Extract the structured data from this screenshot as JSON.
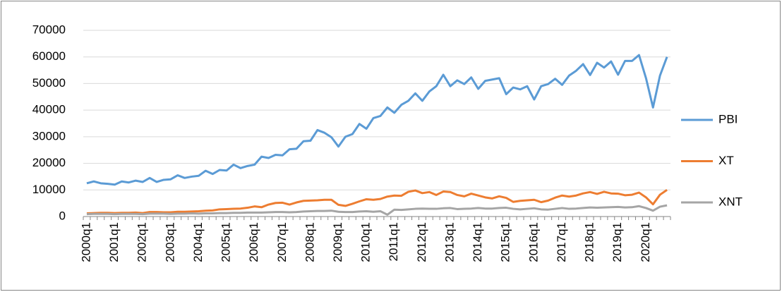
{
  "chart_data": {
    "type": "line",
    "categories": [
      "2000q1",
      null,
      null,
      null,
      "2001q1",
      null,
      null,
      null,
      "2002q1",
      null,
      null,
      null,
      "2003q1",
      null,
      null,
      null,
      "2004q1",
      null,
      null,
      null,
      "2005q1",
      null,
      null,
      null,
      "2006q1",
      null,
      null,
      null,
      "2007q1",
      null,
      null,
      null,
      "2008q1",
      null,
      null,
      null,
      "2009q1",
      null,
      null,
      null,
      "2010q1",
      null,
      null,
      null,
      "2011q1",
      null,
      null,
      null,
      "2012q1",
      null,
      null,
      null,
      "2013q1",
      null,
      null,
      null,
      "2014q1",
      null,
      null,
      null,
      "2015q1",
      null,
      null,
      null,
      "2016q1",
      null,
      null,
      null,
      "2017q1",
      null,
      null,
      null,
      "2018q1",
      null,
      null,
      null,
      "2019q1",
      null,
      null,
      null,
      "2020q1",
      null,
      null,
      null
    ],
    "series": [
      {
        "name": "PBI",
        "color": "#5b9bd5",
        "values": [
          12500,
          13200,
          12500,
          12300,
          12000,
          13200,
          12800,
          13500,
          13000,
          14500,
          13000,
          13800,
          14000,
          15500,
          14500,
          15000,
          15300,
          17200,
          16000,
          17500,
          17300,
          19500,
          18200,
          19000,
          19500,
          22500,
          22000,
          23200,
          23000,
          25300,
          25500,
          28300,
          28500,
          32500,
          31500,
          29800,
          26300,
          30000,
          31000,
          34800,
          33000,
          37000,
          37800,
          41000,
          39000,
          42000,
          43500,
          46300,
          43500,
          47000,
          49000,
          53300,
          49000,
          51200,
          49800,
          52300,
          48000,
          51000,
          51500,
          52000,
          46000,
          48500,
          47800,
          49000,
          44000,
          49000,
          49800,
          51800,
          49500,
          53000,
          54800,
          57300,
          53200,
          57800,
          56000,
          58300,
          53300,
          58500,
          58500,
          60700,
          52000,
          41000,
          53000,
          60000
        ]
      },
      {
        "name": "XT",
        "color": "#ed7d31",
        "values": [
          1200,
          1300,
          1400,
          1400,
          1300,
          1400,
          1400,
          1500,
          1300,
          1700,
          1700,
          1600,
          1600,
          1800,
          1800,
          1900,
          2000,
          2200,
          2300,
          2700,
          2800,
          2900,
          3000,
          3300,
          3800,
          3500,
          4500,
          5100,
          5200,
          4500,
          5300,
          5900,
          6000,
          6100,
          6300,
          6300,
          4400,
          4000,
          4800,
          5700,
          6500,
          6300,
          6600,
          7500,
          7900,
          7800,
          9300,
          9800,
          8800,
          9200,
          8100,
          9400,
          9200,
          8100,
          7600,
          8600,
          7900,
          7200,
          6800,
          7600,
          7000,
          5500,
          5900,
          6100,
          6300,
          5400,
          6000,
          7100,
          7900,
          7500,
          7900,
          8700,
          9200,
          8500,
          9300,
          8700,
          8600,
          8000,
          8200,
          9000,
          7200,
          4600,
          8200,
          10000
        ]
      },
      {
        "name": "XNT",
        "color": "#a5a5a5",
        "values": [
          900,
          1000,
          1000,
          1000,
          900,
          1000,
          1000,
          1000,
          900,
          1100,
          1100,
          1100,
          1000,
          1100,
          1100,
          1200,
          1100,
          1200,
          1200,
          1300,
          1300,
          1400,
          1400,
          1500,
          1500,
          1500,
          1600,
          1700,
          1700,
          1600,
          1700,
          1900,
          2000,
          2100,
          2100,
          2200,
          1800,
          1700,
          1700,
          1900,
          2000,
          1800,
          2000,
          700,
          2600,
          2500,
          2700,
          2900,
          3000,
          2900,
          2900,
          3100,
          3200,
          2800,
          2900,
          3000,
          3200,
          3000,
          3000,
          3200,
          3300,
          2900,
          2700,
          2900,
          3100,
          2700,
          2600,
          2900,
          3200,
          2900,
          3000,
          3200,
          3400,
          3300,
          3400,
          3500,
          3600,
          3400,
          3500,
          3900,
          3200,
          2200,
          3700,
          4200
        ]
      }
    ],
    "ylim": [
      0,
      70000
    ],
    "yticks": [
      0,
      10000,
      20000,
      30000,
      40000,
      50000,
      60000,
      70000
    ],
    "grid": true,
    "legend": "right"
  }
}
